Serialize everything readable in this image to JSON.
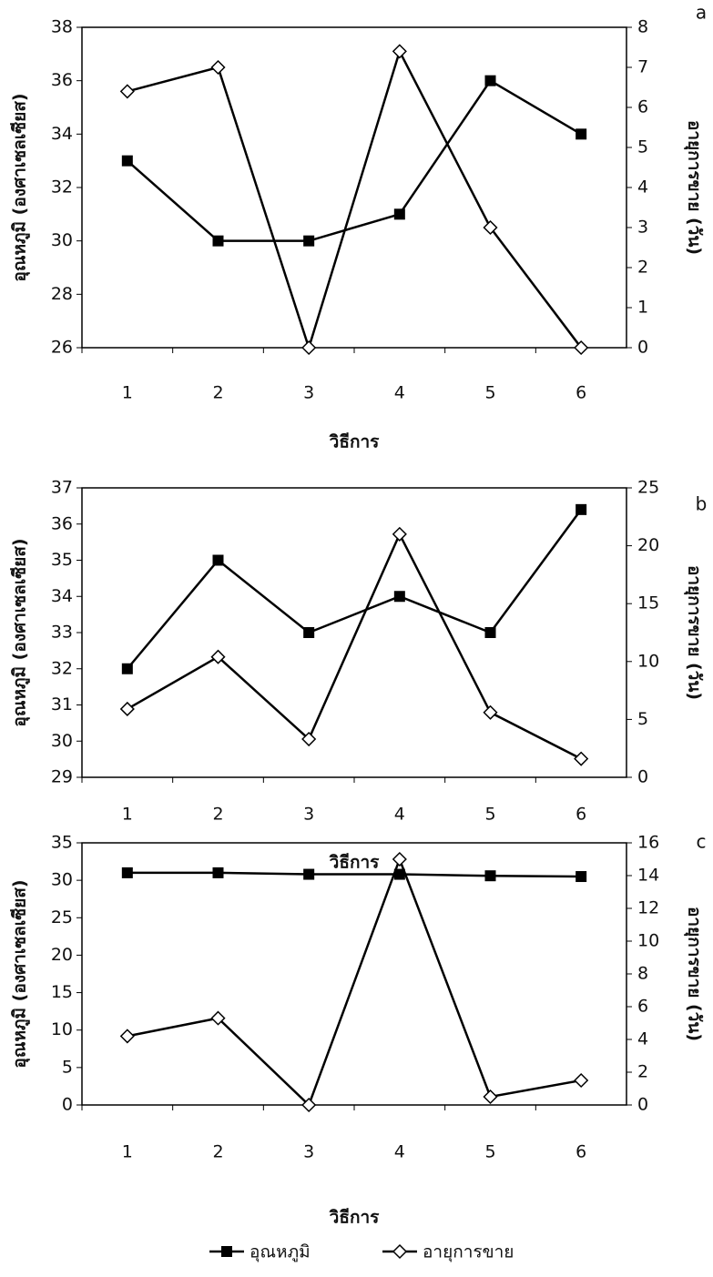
{
  "legend": [
    "อุณหภูมิ",
    "อายุการขาย"
  ],
  "chart_data": [
    {
      "type": "line",
      "label": "a",
      "xlabel": "วิธีการ",
      "ylabel": "อุณหภูมิ (องศาเซลเซียส)",
      "y2label": "อายุการขาย (วัน)",
      "categories": [
        "1",
        "2",
        "3",
        "4",
        "5",
        "6"
      ],
      "ylim": [
        26,
        38
      ],
      "yticks": [
        26,
        28,
        30,
        32,
        34,
        36,
        38
      ],
      "y2lim": [
        0,
        8
      ],
      "y2ticks": [
        0,
        1,
        2,
        3,
        4,
        5,
        6,
        7,
        8
      ],
      "series": [
        {
          "color": "#000000",
          "marker": "square",
          "values": [
            33,
            30,
            30,
            31,
            36,
            34
          ]
        },
        {
          "color": "#000000",
          "marker": "diamond",
          "axis": "y2",
          "values": [
            6.4,
            7.0,
            0,
            7.4,
            3.0,
            0
          ]
        }
      ]
    },
    {
      "type": "line",
      "label": "b",
      "xlabel": "วิธีการ",
      "ylabel": "อุณหภูมิ (องศาเซลเซียส)",
      "y2label": "อายุการขาย (วัน)",
      "categories": [
        "1",
        "2",
        "3",
        "4",
        "5",
        "6"
      ],
      "ylim": [
        29,
        37
      ],
      "yticks": [
        29,
        30,
        31,
        32,
        33,
        34,
        35,
        36,
        37
      ],
      "y2lim": [
        0,
        25
      ],
      "y2ticks": [
        0,
        5,
        10,
        15,
        20,
        25
      ],
      "series": [
        {
          "color": "#000000",
          "marker": "square",
          "values": [
            32,
            35,
            33,
            34,
            33,
            36.4
          ]
        },
        {
          "color": "#000000",
          "marker": "diamond",
          "axis": "y2",
          "values": [
            5.9,
            10.4,
            3.3,
            21,
            5.6,
            1.6
          ]
        }
      ]
    },
    {
      "type": "line",
      "label": "c",
      "xlabel": "วิธีการ",
      "ylabel": "อุณหภูมิ (องศาเซลเซียส)",
      "y2label": "อายุการขาย (วัน)",
      "categories": [
        "1",
        "2",
        "3",
        "4",
        "5",
        "6"
      ],
      "ylim": [
        0,
        35
      ],
      "yticks": [
        0,
        5,
        10,
        15,
        20,
        25,
        30,
        35
      ],
      "y2lim": [
        0,
        16
      ],
      "y2ticks": [
        0,
        2,
        4,
        6,
        8,
        10,
        12,
        14,
        16
      ],
      "series": [
        {
          "color": "#000000",
          "marker": "square",
          "values": [
            31,
            31,
            30.8,
            30.8,
            30.6,
            30.5
          ]
        },
        {
          "color": "#000000",
          "marker": "diamond",
          "axis": "y2",
          "values": [
            4.2,
            5.3,
            0,
            15,
            0.5,
            1.5
          ]
        }
      ]
    }
  ]
}
